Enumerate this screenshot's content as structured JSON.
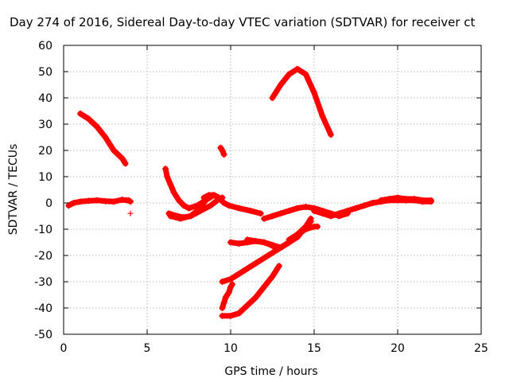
{
  "chart_data": {
    "type": "scatter",
    "title": "Day 274 of 2016, Sidereal Day-to-day VTEC variation (SDTVAR) for receiver ct",
    "xlabel": "GPS time / hours",
    "ylabel": "SDTVAR / TECUs",
    "xlim": [
      0,
      25
    ],
    "ylim": [
      -50,
      60
    ],
    "xticks": [
      0,
      5,
      10,
      15,
      20,
      25
    ],
    "yticks": [
      -50,
      -40,
      -30,
      -20,
      -10,
      0,
      10,
      20,
      30,
      40,
      50,
      60
    ],
    "grid": true,
    "legend": "none",
    "marker": "+",
    "color": "#ff0000",
    "tracks": [
      {
        "x": [
          0.3,
          0.6,
          1.0,
          1.5,
          2.0,
          2.5,
          3.0,
          3.5,
          3.8
        ],
        "y": [
          -1,
          0,
          0.5,
          0.8,
          1,
          0.7,
          0.5,
          1.2,
          1
        ]
      },
      {
        "x": [
          3.9,
          4.0
        ],
        "y": [
          1.0,
          0.5
        ]
      },
      {
        "x": [
          1.0,
          1.5,
          2.0,
          2.5,
          3.0,
          3.5,
          3.7
        ],
        "y": [
          34,
          32,
          29,
          25,
          20,
          17,
          15
        ]
      },
      {
        "x": [
          6.1,
          6.2,
          6.4,
          6.6,
          6.9,
          7.2,
          7.5
        ],
        "y": [
          13,
          10,
          7,
          4,
          1,
          -1,
          -2
        ]
      },
      {
        "x": [
          6.3,
          6.8,
          7.2,
          7.6,
          8.0,
          8.4
        ],
        "y": [
          -4,
          -5,
          -5.5,
          -5,
          -3,
          0
        ]
      },
      {
        "x": [
          6.4,
          7.0,
          7.6,
          8.2,
          8.8,
          9.2,
          9.5
        ],
        "y": [
          -5,
          -6,
          -5,
          -3,
          -1,
          1,
          2
        ]
      },
      {
        "x": [
          7.5,
          8.0,
          8.5,
          9.0,
          9.3
        ],
        "y": [
          -2,
          -1,
          1,
          3,
          2
        ]
      },
      {
        "x": [
          8.4,
          8.7,
          9.0,
          9.3,
          9.6,
          9.9,
          10.5,
          11.2,
          11.8
        ],
        "y": [
          2,
          3,
          3,
          2,
          0,
          -1,
          -2,
          -3,
          -4
        ]
      },
      {
        "x": [
          9.4,
          9.5,
          9.6
        ],
        "y": [
          21,
          20,
          18.5
        ]
      },
      {
        "x": [
          10.0,
          10.5,
          11.0,
          11.5,
          12.0,
          12.4,
          12.7
        ],
        "y": [
          -15,
          -15.5,
          -15,
          -14.5,
          -15,
          -16,
          -17
        ]
      },
      {
        "x": [
          11.0,
          11.5,
          12.0,
          12.5,
          13.0,
          13.5,
          14.0,
          14.5,
          14.8
        ],
        "y": [
          -14,
          -14.5,
          -15,
          -16,
          -17,
          -15,
          -12,
          -9,
          -7
        ]
      },
      {
        "x": [
          9.5,
          10.0,
          10.5,
          11.0,
          11.5,
          12.0,
          12.5,
          13.0,
          13.5,
          14.0,
          14.5,
          14.8
        ],
        "y": [
          -30,
          -29,
          -27,
          -25,
          -23,
          -21,
          -19,
          -17,
          -15,
          -13,
          -9,
          -6
        ]
      },
      {
        "x": [
          13.5,
          14.0,
          14.5,
          15.0,
          15.2
        ],
        "y": [
          -14,
          -12,
          -10,
          -9,
          -9
        ]
      },
      {
        "x": [
          9.5,
          9.6,
          9.7,
          9.8,
          9.9,
          10.0,
          10.1
        ],
        "y": [
          -40,
          -38,
          -36,
          -35,
          -34,
          -32,
          -31
        ]
      },
      {
        "x": [
          9.5,
          10.0,
          10.5,
          11.0,
          11.5,
          12.0,
          12.5,
          12.9
        ],
        "y": [
          -43,
          -43,
          -42,
          -39,
          -36,
          -32,
          -28,
          -24
        ]
      },
      {
        "x": [
          12.5,
          13.0,
          13.5,
          14.0,
          14.5,
          15.0,
          15.5,
          16.0
        ],
        "y": [
          40,
          45,
          49,
          51,
          49,
          42,
          33,
          26
        ]
      },
      {
        "x": [
          12.0,
          12.5,
          13.0,
          13.5,
          14.0,
          14.5,
          15.0,
          15.5,
          16.0,
          16.5,
          17.0
        ],
        "y": [
          -6,
          -5,
          -4,
          -3,
          -2,
          -1.5,
          -2,
          -3,
          -4,
          -5,
          -4
        ]
      },
      {
        "x": [
          15.0,
          15.5,
          16.0,
          16.5,
          17.0,
          17.5,
          18.0,
          18.5,
          19.0,
          19.5,
          20.0,
          20.5,
          21.0,
          21.5,
          22.0
        ],
        "y": [
          -3,
          -4,
          -5,
          -4,
          -3,
          -2,
          -1,
          0,
          0.5,
          1,
          1,
          1,
          1,
          0.5,
          0.5
        ]
      },
      {
        "x": [
          19.0,
          19.5,
          20.0,
          20.5,
          21.0,
          21.5,
          22.0
        ],
        "y": [
          1,
          1.5,
          2,
          1.5,
          1.5,
          1,
          1
        ]
      }
    ],
    "isolated_points": [
      {
        "x": 4.0,
        "y": -4
      }
    ]
  }
}
